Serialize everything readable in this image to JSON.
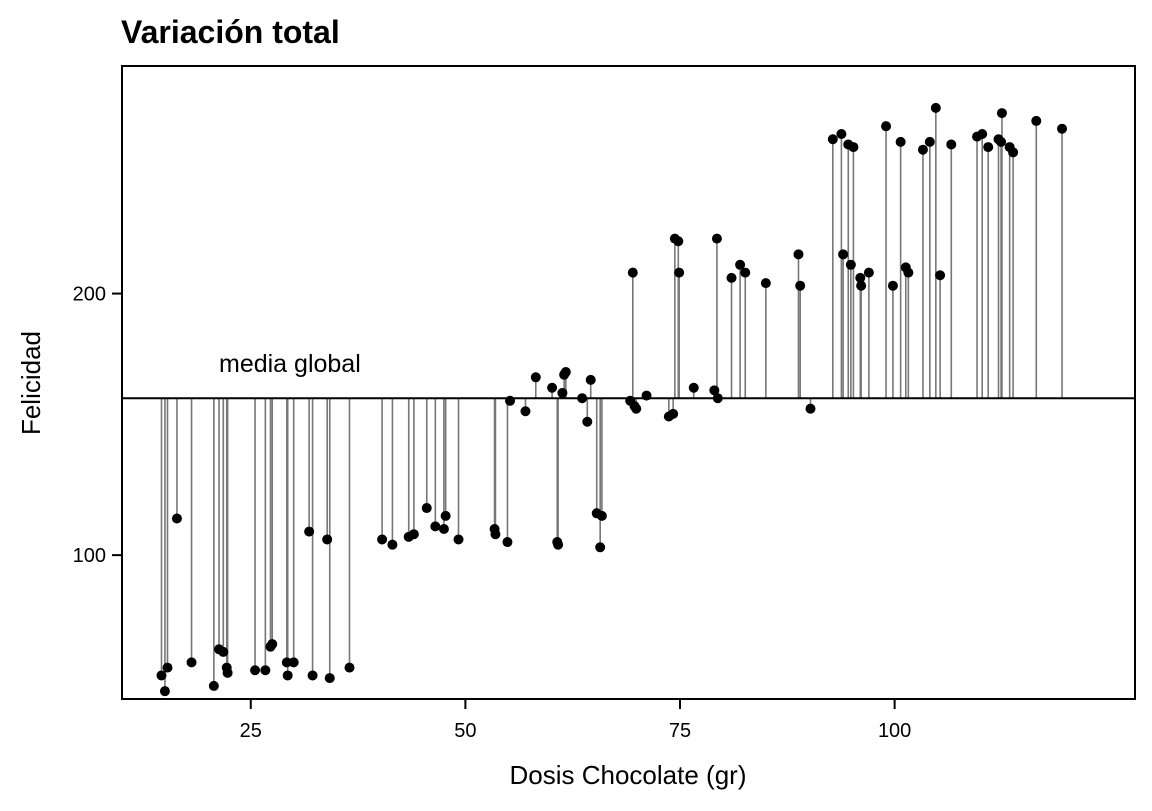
{
  "chart_data": {
    "type": "scatter",
    "title": "Variación total",
    "xlabel": "Dosis Chocolate (gr)",
    "ylabel": "Felicidad",
    "xlim": [
      10,
      128
    ],
    "ylim": [
      45,
      287
    ],
    "x_ticks": [
      25,
      50,
      75,
      100
    ],
    "y_ticks": [
      100,
      200
    ],
    "grid": false,
    "mean_line": {
      "y": 160,
      "label": "media global"
    },
    "segments_to_mean": true,
    "points": [
      {
        "x": 14.6,
        "y": 54
      },
      {
        "x": 15.0,
        "y": 48
      },
      {
        "x": 15.3,
        "y": 57
      },
      {
        "x": 16.4,
        "y": 114
      },
      {
        "x": 18.1,
        "y": 59
      },
      {
        "x": 20.7,
        "y": 50
      },
      {
        "x": 21.3,
        "y": 64
      },
      {
        "x": 21.8,
        "y": 63
      },
      {
        "x": 22.2,
        "y": 57
      },
      {
        "x": 22.3,
        "y": 55
      },
      {
        "x": 25.5,
        "y": 56
      },
      {
        "x": 26.7,
        "y": 56
      },
      {
        "x": 27.3,
        "y": 65
      },
      {
        "x": 27.5,
        "y": 66
      },
      {
        "x": 29.2,
        "y": 59
      },
      {
        "x": 29.3,
        "y": 54
      },
      {
        "x": 30.0,
        "y": 59
      },
      {
        "x": 31.8,
        "y": 109
      },
      {
        "x": 32.2,
        "y": 54
      },
      {
        "x": 33.9,
        "y": 106
      },
      {
        "x": 34.2,
        "y": 53
      },
      {
        "x": 36.5,
        "y": 57
      },
      {
        "x": 40.3,
        "y": 106
      },
      {
        "x": 41.5,
        "y": 104
      },
      {
        "x": 43.4,
        "y": 107
      },
      {
        "x": 44.0,
        "y": 108
      },
      {
        "x": 45.5,
        "y": 118
      },
      {
        "x": 46.5,
        "y": 111
      },
      {
        "x": 47.5,
        "y": 110
      },
      {
        "x": 47.7,
        "y": 115
      },
      {
        "x": 49.2,
        "y": 106
      },
      {
        "x": 53.4,
        "y": 110
      },
      {
        "x": 53.5,
        "y": 108
      },
      {
        "x": 54.9,
        "y": 105
      },
      {
        "x": 55.2,
        "y": 159
      },
      {
        "x": 57.0,
        "y": 155
      },
      {
        "x": 58.2,
        "y": 168
      },
      {
        "x": 60.1,
        "y": 164
      },
      {
        "x": 60.7,
        "y": 105
      },
      {
        "x": 60.8,
        "y": 104
      },
      {
        "x": 61.3,
        "y": 162
      },
      {
        "x": 61.5,
        "y": 169
      },
      {
        "x": 61.7,
        "y": 170
      },
      {
        "x": 63.6,
        "y": 160
      },
      {
        "x": 64.2,
        "y": 151
      },
      {
        "x": 64.6,
        "y": 167
      },
      {
        "x": 65.3,
        "y": 116
      },
      {
        "x": 65.7,
        "y": 103
      },
      {
        "x": 65.9,
        "y": 115
      },
      {
        "x": 69.2,
        "y": 159
      },
      {
        "x": 69.5,
        "y": 208
      },
      {
        "x": 69.7,
        "y": 157
      },
      {
        "x": 69.9,
        "y": 156
      },
      {
        "x": 71.1,
        "y": 161
      },
      {
        "x": 73.7,
        "y": 153
      },
      {
        "x": 74.2,
        "y": 154
      },
      {
        "x": 74.4,
        "y": 221
      },
      {
        "x": 74.8,
        "y": 220
      },
      {
        "x": 74.9,
        "y": 208
      },
      {
        "x": 76.6,
        "y": 164
      },
      {
        "x": 79.0,
        "y": 163
      },
      {
        "x": 79.3,
        "y": 221
      },
      {
        "x": 79.4,
        "y": 160
      },
      {
        "x": 81.0,
        "y": 206
      },
      {
        "x": 82.0,
        "y": 211
      },
      {
        "x": 82.6,
        "y": 208
      },
      {
        "x": 85.0,
        "y": 204
      },
      {
        "x": 88.8,
        "y": 215
      },
      {
        "x": 89.0,
        "y": 203
      },
      {
        "x": 90.2,
        "y": 156
      },
      {
        "x": 92.8,
        "y": 259
      },
      {
        "x": 93.8,
        "y": 261
      },
      {
        "x": 94.0,
        "y": 215
      },
      {
        "x": 94.6,
        "y": 257
      },
      {
        "x": 94.9,
        "y": 211
      },
      {
        "x": 95.2,
        "y": 256
      },
      {
        "x": 96.0,
        "y": 206
      },
      {
        "x": 96.1,
        "y": 203
      },
      {
        "x": 97.0,
        "y": 208
      },
      {
        "x": 99.0,
        "y": 264
      },
      {
        "x": 99.8,
        "y": 203
      },
      {
        "x": 100.7,
        "y": 258
      },
      {
        "x": 101.3,
        "y": 210
      },
      {
        "x": 101.6,
        "y": 208
      },
      {
        "x": 103.3,
        "y": 255
      },
      {
        "x": 104.1,
        "y": 258
      },
      {
        "x": 104.8,
        "y": 271
      },
      {
        "x": 105.3,
        "y": 207
      },
      {
        "x": 106.6,
        "y": 257
      },
      {
        "x": 109.6,
        "y": 260
      },
      {
        "x": 110.2,
        "y": 261
      },
      {
        "x": 110.9,
        "y": 256
      },
      {
        "x": 112.1,
        "y": 259
      },
      {
        "x": 112.4,
        "y": 258
      },
      {
        "x": 112.5,
        "y": 269
      },
      {
        "x": 113.4,
        "y": 256
      },
      {
        "x": 113.8,
        "y": 254
      },
      {
        "x": 116.5,
        "y": 266
      },
      {
        "x": 119.5,
        "y": 263
      }
    ]
  }
}
